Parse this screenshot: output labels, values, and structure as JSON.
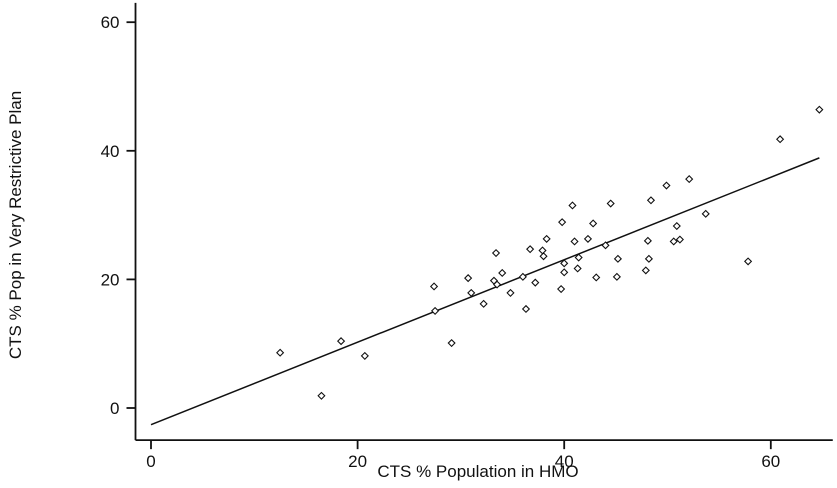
{
  "chart_data": {
    "type": "scatter",
    "xlabel": "CTS % Population in HMO",
    "ylabel": "CTS % Pop in Very Restrictive Plan",
    "xlim": [
      -1.5,
      66
    ],
    "ylim": [
      -5,
      63
    ],
    "x_ticks": [
      0,
      20,
      40,
      60
    ],
    "y_ticks": [
      0,
      20,
      40,
      60
    ],
    "x_tick_labels": [
      "0",
      "20",
      "40",
      "60"
    ],
    "y_tick_labels": [
      "0",
      "20",
      "40",
      "60"
    ],
    "grid": false,
    "legend": "none",
    "marker": "hollow diamond",
    "points": [
      [
        12.5,
        8.6
      ],
      [
        16.5,
        1.9
      ],
      [
        18.4,
        10.4
      ],
      [
        20.7,
        8.1
      ],
      [
        27.4,
        18.9
      ],
      [
        27.5,
        15.1
      ],
      [
        29.1,
        10.1
      ],
      [
        30.7,
        20.2
      ],
      [
        31.0,
        17.9
      ],
      [
        32.2,
        16.2
      ],
      [
        33.2,
        19.8
      ],
      [
        33.4,
        24.1
      ],
      [
        33.5,
        19.2
      ],
      [
        34.0,
        21.0
      ],
      [
        34.8,
        17.9
      ],
      [
        36.0,
        20.4
      ],
      [
        36.3,
        15.4
      ],
      [
        36.7,
        24.7
      ],
      [
        37.2,
        19.5
      ],
      [
        37.9,
        24.5
      ],
      [
        38.0,
        23.6
      ],
      [
        38.3,
        26.3
      ],
      [
        39.7,
        18.5
      ],
      [
        39.8,
        28.9
      ],
      [
        40.0,
        21.1
      ],
      [
        40.0,
        22.5
      ],
      [
        40.8,
        31.5
      ],
      [
        41.0,
        25.9
      ],
      [
        41.3,
        21.7
      ],
      [
        41.4,
        23.4
      ],
      [
        42.3,
        26.3
      ],
      [
        42.8,
        28.7
      ],
      [
        43.1,
        20.3
      ],
      [
        44.0,
        25.3
      ],
      [
        44.5,
        31.8
      ],
      [
        45.1,
        20.4
      ],
      [
        45.2,
        23.2
      ],
      [
        47.9,
        21.4
      ],
      [
        48.1,
        26.0
      ],
      [
        48.2,
        23.2
      ],
      [
        48.4,
        32.3
      ],
      [
        49.9,
        34.6
      ],
      [
        50.6,
        25.9
      ],
      [
        50.9,
        28.3
      ],
      [
        51.2,
        26.2
      ],
      [
        52.1,
        35.6
      ],
      [
        53.7,
        30.2
      ],
      [
        57.8,
        22.8
      ],
      [
        60.9,
        41.8
      ],
      [
        64.7,
        46.4
      ]
    ],
    "fit_line": {
      "x": [
        0,
        64.7
      ],
      "y": [
        -2.6,
        38.9
      ]
    }
  }
}
